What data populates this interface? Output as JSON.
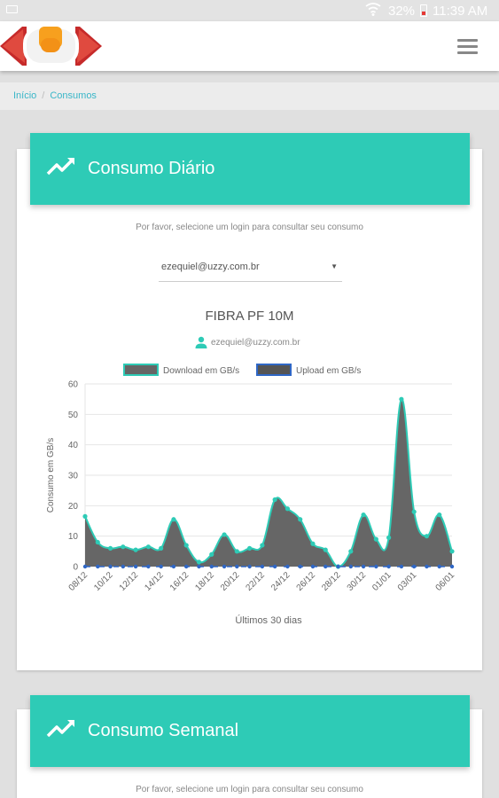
{
  "status_bar": {
    "battery": "32%",
    "time": "11:39 AM"
  },
  "icons": [
    "notification-icon",
    "wifi-icon",
    "battery-icon",
    "menu-icon",
    "trend-icon",
    "user-icon",
    "dropdown-caret-icon"
  ],
  "colors": {
    "accent": "#2ecbb6",
    "link": "#39b6c8",
    "download_fill": "#666666",
    "upload_fill": "#555555",
    "upload_line": "#2f67c6"
  },
  "breadcrumb": {
    "home": "Início",
    "separator": "/",
    "current": "Consumos"
  },
  "daily": {
    "title": "Consumo Diário",
    "hint": "Por favor, selecione um login para consultar seu consumo",
    "selected_login": "ezequiel@uzzy.com.br",
    "plan": "FIBRA PF 10M",
    "plan_user": "ezequiel@uzzy.com.br"
  },
  "weekly": {
    "title": "Consumo Semanal",
    "hint": "Por favor, selecione um login para consultar seu consumo"
  },
  "chart_data": {
    "type": "area",
    "ylabel": "Consumo em GB/s",
    "xlabel": "Últimos 30 dias",
    "ylim": [
      0,
      60
    ],
    "yticks": [
      0,
      10,
      20,
      30,
      40,
      50,
      60
    ],
    "grid": true,
    "legend_position": "top",
    "x": [
      "08/12",
      "09/12",
      "10/12",
      "11/12",
      "12/12",
      "13/12",
      "14/12",
      "15/12",
      "16/12",
      "17/12",
      "18/12",
      "19/12",
      "20/12",
      "21/12",
      "22/12",
      "23/12",
      "24/12",
      "25/12",
      "26/12",
      "27/12",
      "28/12",
      "29/12",
      "30/12",
      "31/12",
      "01/01",
      "02/01",
      "03/01",
      "04/01",
      "05/01",
      "06/01"
    ],
    "xtick_labels": [
      "08/12",
      "10/12",
      "12/12",
      "14/12",
      "16/12",
      "18/12",
      "20/12",
      "22/12",
      "24/12",
      "26/12",
      "28/12",
      "30/12",
      "01/01",
      "03/01",
      "06/01"
    ],
    "series": [
      {
        "name": "Download em GB/s",
        "values": [
          16.5,
          8,
          6,
          6.5,
          5.5,
          6.5,
          6,
          15.5,
          7,
          1.5,
          4,
          10.5,
          5,
          6,
          7,
          22,
          19,
          15.5,
          7.5,
          5.5,
          0,
          5,
          17,
          9,
          9.5,
          55,
          18,
          10,
          17,
          5
        ]
      },
      {
        "name": "Upload em GB/s",
        "values": [
          0,
          0,
          0,
          0,
          0,
          0,
          0,
          0,
          0,
          0,
          0,
          0,
          0,
          0,
          0,
          0,
          0,
          0,
          0,
          0,
          0,
          0,
          0,
          0,
          0,
          0,
          0,
          0,
          0,
          0
        ]
      }
    ]
  }
}
